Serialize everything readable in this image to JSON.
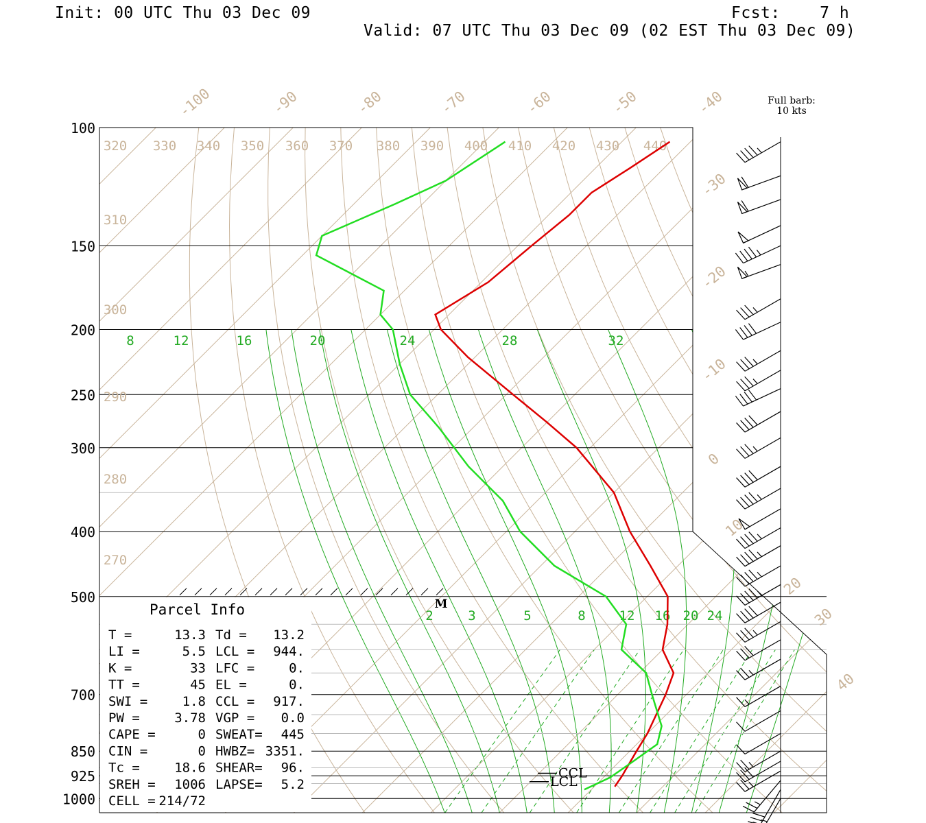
{
  "header": {
    "init": "Init: 00 UTC Thu 03 Dec 09",
    "fcst": "Fcst:    7 h",
    "valid": "Valid: 07 UTC Thu 03 Dec 09 (02 EST Thu 03 Dec 09)"
  },
  "barb_legend": {
    "line1": "Full barb:",
    "line2": "10 kts"
  },
  "colors": {
    "temperature": "#dd0000",
    "dewpoint": "#22dd22",
    "reference": "#c9b49a",
    "mixing": "#22aa22",
    "axes": "#000000"
  },
  "chart_data": {
    "type": "line",
    "pressure_ticks": [
      100,
      150,
      200,
      250,
      300,
      400,
      500,
      700,
      850,
      925,
      1000
    ],
    "isotherm_labels": [
      "-100",
      "-90",
      "-80",
      "-70",
      "-60",
      "-50",
      "-40",
      "-30",
      "-20",
      "-10",
      "0",
      "10",
      "20",
      "30",
      "40"
    ],
    "theta_top_labels": [
      "320",
      "330",
      "340",
      "350",
      "360",
      "370",
      "380",
      "390",
      "400",
      "410",
      "420",
      "430",
      "440"
    ],
    "theta_left_labels": [
      "310",
      "300",
      "290",
      "280",
      "270"
    ],
    "saturated_labels": [
      "8",
      "12",
      "16",
      "20",
      "24",
      "28",
      "32"
    ],
    "mixing_ratio_labels": [
      "2",
      "3",
      "5",
      "8",
      "12",
      "16",
      "20",
      "24"
    ],
    "series": [
      {
        "name": "temperature",
        "points": [
          [
            105,
            -73
          ],
          [
            115,
            -75
          ],
          [
            125,
            -77
          ],
          [
            135,
            -77
          ],
          [
            150,
            -78
          ],
          [
            170,
            -79
          ],
          [
            190,
            -82
          ],
          [
            200,
            -79
          ],
          [
            220,
            -71
          ],
          [
            250,
            -59
          ],
          [
            275,
            -50
          ],
          [
            300,
            -42
          ],
          [
            350,
            -30
          ],
          [
            400,
            -22
          ],
          [
            450,
            -14
          ],
          [
            500,
            -7
          ],
          [
            550,
            -3
          ],
          [
            600,
            0
          ],
          [
            650,
            5
          ],
          [
            700,
            7
          ],
          [
            800,
            10
          ],
          [
            850,
            11
          ],
          [
            900,
            12
          ],
          [
            925,
            12.5
          ],
          [
            960,
            13
          ]
        ]
      },
      {
        "name": "dewpoint",
        "points": [
          [
            105,
            -97
          ],
          [
            120,
            -100
          ],
          [
            130,
            -104
          ],
          [
            145,
            -110
          ],
          [
            155,
            -108
          ],
          [
            175,
            -93
          ],
          [
            190,
            -90
          ],
          [
            200,
            -86
          ],
          [
            225,
            -80
          ],
          [
            250,
            -74
          ],
          [
            280,
            -65
          ],
          [
            320,
            -55
          ],
          [
            360,
            -45
          ],
          [
            400,
            -38
          ],
          [
            450,
            -28
          ],
          [
            500,
            -16
          ],
          [
            550,
            -9
          ],
          [
            600,
            -6
          ],
          [
            650,
            1
          ],
          [
            700,
            5
          ],
          [
            780,
            11
          ],
          [
            830,
            13
          ],
          [
            880,
            12
          ],
          [
            930,
            11
          ],
          [
            970,
            9
          ]
        ]
      }
    ],
    "annotations": [
      {
        "label": "M",
        "p": 510
      },
      {
        "label": "CCL",
        "p": 917
      },
      {
        "label": "LCL",
        "p": 944
      }
    ]
  },
  "parcel_info": {
    "title": "Parcel Info",
    "rows": [
      [
        "T  =",
        "13.3",
        "Td =",
        "13.2"
      ],
      [
        "LI =",
        "5.5",
        "LCL =",
        "944."
      ],
      [
        "K  =",
        "33",
        "LFC =",
        "0."
      ],
      [
        "TT =",
        "45",
        "EL  =",
        "0."
      ],
      [
        "SWI =",
        "1.8",
        "CCL =",
        "917."
      ],
      [
        "PW =",
        "3.78",
        "VGP =",
        "0.0"
      ],
      [
        "CAPE =",
        "0",
        "SWEAT=",
        "445"
      ],
      [
        "CIN =",
        "0",
        "HWBZ=",
        "3351."
      ],
      [
        "Tc =",
        "18.6",
        "SHEAR=",
        "96."
      ],
      [
        "SREH =",
        "1006",
        "LAPSE=",
        "5.2"
      ],
      [
        "CELL =",
        "214/72",
        "",
        ""
      ]
    ]
  },
  "wind_barbs": [
    {
      "p": 105,
      "spd": 45,
      "dir": 300
    },
    {
      "p": 118,
      "spd": 60,
      "dir": 290
    },
    {
      "p": 128,
      "spd": 60,
      "dir": 290
    },
    {
      "p": 140,
      "spd": 50,
      "dir": 295
    },
    {
      "p": 150,
      "spd": 45,
      "dir": 295
    },
    {
      "p": 160,
      "spd": 55,
      "dir": 290
    },
    {
      "p": 180,
      "spd": 35,
      "dir": 300
    },
    {
      "p": 195,
      "spd": 40,
      "dir": 295
    },
    {
      "p": 215,
      "spd": 35,
      "dir": 300
    },
    {
      "p": 230,
      "spd": 35,
      "dir": 300
    },
    {
      "p": 245,
      "spd": 40,
      "dir": 295
    },
    {
      "p": 265,
      "spd": 40,
      "dir": 300
    },
    {
      "p": 290,
      "spd": 35,
      "dir": 300
    },
    {
      "p": 320,
      "spd": 40,
      "dir": 300
    },
    {
      "p": 345,
      "spd": 45,
      "dir": 300
    },
    {
      "p": 370,
      "spd": 50,
      "dir": 300
    },
    {
      "p": 395,
      "spd": 45,
      "dir": 300
    },
    {
      "p": 420,
      "spd": 45,
      "dir": 300
    },
    {
      "p": 450,
      "spd": 45,
      "dir": 300
    },
    {
      "p": 480,
      "spd": 45,
      "dir": 300
    },
    {
      "p": 510,
      "spd": 40,
      "dir": 300
    },
    {
      "p": 545,
      "spd": 35,
      "dir": 300
    },
    {
      "p": 580,
      "spd": 30,
      "dir": 300
    },
    {
      "p": 620,
      "spd": 25,
      "dir": 300
    },
    {
      "p": 680,
      "spd": 15,
      "dir": 300
    },
    {
      "p": 740,
      "spd": 10,
      "dir": 300
    },
    {
      "p": 800,
      "spd": 10,
      "dir": 300
    },
    {
      "p": 850,
      "spd": 25,
      "dir": 300
    },
    {
      "p": 880,
      "spd": 30,
      "dir": 300
    },
    {
      "p": 910,
      "spd": 25,
      "dir": 300
    },
    {
      "p": 940,
      "spd": 25,
      "dir": 320
    },
    {
      "p": 970,
      "spd": 30,
      "dir": 330
    },
    {
      "p": 1000,
      "spd": 35,
      "dir": 330
    }
  ]
}
